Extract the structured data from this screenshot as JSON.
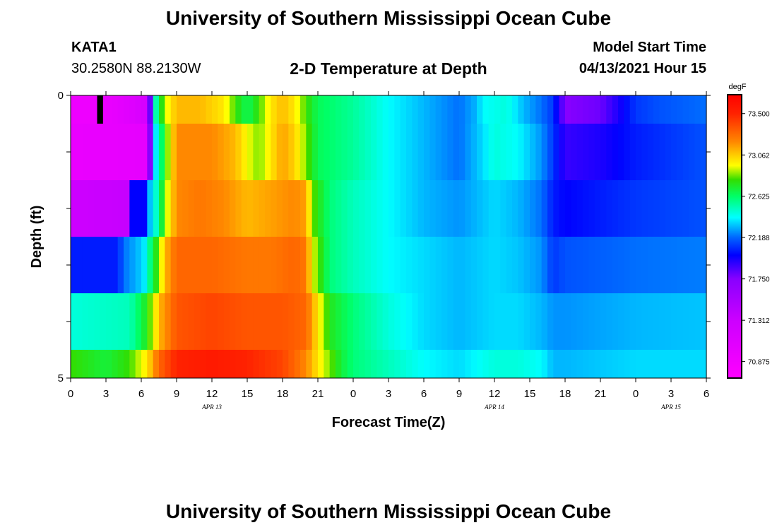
{
  "page": {
    "title_top": "University of Southern Mississippi Ocean Cube",
    "title_bottom": "University of Southern Mississippi Ocean Cube",
    "station_id": "KATA1",
    "station_coords": "30.2580N  88.2130W",
    "chart_title": "2-D Temperature at Depth",
    "model_start_label": "Model Start Time",
    "model_start_value": "04/13/2021 Hour 15"
  },
  "chart_data": {
    "type": "heatmap",
    "title": "2-D Temperature at Depth",
    "xlabel": "Forecast Time(Z)",
    "ylabel": "Depth (ft)",
    "units": "degF",
    "x_start_hour": 0,
    "x_end_hour": 54,
    "x_ticks": [
      {
        "hour": 0,
        "label": "0"
      },
      {
        "hour": 3,
        "label": "3"
      },
      {
        "hour": 6,
        "label": "6"
      },
      {
        "hour": 9,
        "label": "9"
      },
      {
        "hour": 12,
        "label": "12"
      },
      {
        "hour": 15,
        "label": "15"
      },
      {
        "hour": 18,
        "label": "18"
      },
      {
        "hour": 21,
        "label": "21"
      },
      {
        "hour": 24,
        "label": "0"
      },
      {
        "hour": 27,
        "label": "3"
      },
      {
        "hour": 30,
        "label": "6"
      },
      {
        "hour": 33,
        "label": "9"
      },
      {
        "hour": 36,
        "label": "12"
      },
      {
        "hour": 39,
        "label": "15"
      },
      {
        "hour": 42,
        "label": "18"
      },
      {
        "hour": 45,
        "label": "21"
      },
      {
        "hour": 48,
        "label": "0"
      },
      {
        "hour": 51,
        "label": "3"
      },
      {
        "hour": 54,
        "label": "6"
      }
    ],
    "date_labels": [
      {
        "hour": 12,
        "label": "APR 13"
      },
      {
        "hour": 36,
        "label": "APR 14"
      },
      {
        "hour": 51,
        "label": "APR 15"
      }
    ],
    "y_range": [
      0,
      5
    ],
    "y_tick_labels": [
      {
        "depth": 0,
        "label": "0"
      },
      {
        "depth": 5,
        "label": "5"
      }
    ],
    "y_minor_ticks": [
      1,
      2,
      3,
      4
    ],
    "rows": [
      {
        "depth_top": 0.0,
        "depth_bottom": 0.5,
        "knots": [
          [
            0,
            70.9
          ],
          [
            2,
            70.9
          ],
          [
            4,
            71.0
          ],
          [
            6.5,
            71.2
          ],
          [
            7,
            72.4
          ],
          [
            8,
            72.9
          ],
          [
            9,
            73.1
          ],
          [
            11,
            73.1
          ],
          [
            13,
            73.0
          ],
          [
            14,
            72.8
          ],
          [
            15,
            72.65
          ],
          [
            16,
            72.8
          ],
          [
            17,
            73.0
          ],
          [
            18,
            73.1
          ],
          [
            19,
            73.0
          ],
          [
            20,
            72.8
          ],
          [
            21,
            72.65
          ],
          [
            24,
            72.55
          ],
          [
            27,
            72.4
          ],
          [
            30,
            72.3
          ],
          [
            33,
            72.2
          ],
          [
            34.5,
            72.3
          ],
          [
            35,
            72.4
          ],
          [
            37,
            72.45
          ],
          [
            38.5,
            72.3
          ],
          [
            40,
            72.2
          ],
          [
            41,
            72.1
          ],
          [
            42,
            71.75
          ],
          [
            45,
            71.8
          ],
          [
            47,
            72.0
          ],
          [
            48,
            72.1
          ],
          [
            50,
            72.15
          ],
          [
            54,
            72.2
          ]
        ],
        "marker": {
          "hour": 2.5,
          "width_hours": 0.5,
          "color": "#000000"
        }
      },
      {
        "depth_top": 0.5,
        "depth_bottom": 1.5,
        "knots": [
          [
            0,
            70.95
          ],
          [
            6.5,
            71.0
          ],
          [
            6.9,
            72.2
          ],
          [
            7.5,
            72.5
          ],
          [
            8.3,
            72.9
          ],
          [
            9,
            73.2
          ],
          [
            12,
            73.2
          ],
          [
            14,
            73.1
          ],
          [
            15,
            72.95
          ],
          [
            16,
            72.85
          ],
          [
            17,
            73.0
          ],
          [
            18,
            73.15
          ],
          [
            19,
            73.05
          ],
          [
            20,
            72.85
          ],
          [
            21,
            72.65
          ],
          [
            24,
            72.55
          ],
          [
            27,
            72.4
          ],
          [
            30,
            72.3
          ],
          [
            33,
            72.2
          ],
          [
            35,
            72.35
          ],
          [
            36,
            72.45
          ],
          [
            38,
            72.4
          ],
          [
            40,
            72.25
          ],
          [
            41,
            72.1
          ],
          [
            42,
            71.9
          ],
          [
            45,
            71.95
          ],
          [
            48,
            72.05
          ],
          [
            51,
            72.1
          ],
          [
            54,
            72.15
          ]
        ]
      },
      {
        "depth_top": 1.5,
        "depth_bottom": 2.5,
        "knots": [
          [
            0,
            71.3
          ],
          [
            4.8,
            71.35
          ],
          [
            5.2,
            72.0
          ],
          [
            6.4,
            72.0
          ],
          [
            6.7,
            72.3
          ],
          [
            7.5,
            72.55
          ],
          [
            8,
            72.85
          ],
          [
            9,
            73.2
          ],
          [
            11,
            73.25
          ],
          [
            13,
            73.2
          ],
          [
            15,
            73.1
          ],
          [
            17,
            73.15
          ],
          [
            19,
            73.2
          ],
          [
            20,
            73.15
          ],
          [
            20.5,
            72.85
          ],
          [
            22,
            72.6
          ],
          [
            24,
            72.5
          ],
          [
            27,
            72.4
          ],
          [
            30,
            72.3
          ],
          [
            33,
            72.25
          ],
          [
            36,
            72.35
          ],
          [
            38,
            72.3
          ],
          [
            40,
            72.2
          ],
          [
            41,
            72.05
          ],
          [
            42,
            72.0
          ],
          [
            48,
            72.1
          ],
          [
            54,
            72.15
          ]
        ]
      },
      {
        "depth_top": 2.5,
        "depth_bottom": 3.5,
        "knots": [
          [
            0,
            72.05
          ],
          [
            4,
            72.05
          ],
          [
            4.5,
            72.2
          ],
          [
            6.2,
            72.35
          ],
          [
            6.8,
            72.6
          ],
          [
            7.5,
            72.85
          ],
          [
            8,
            73.1
          ],
          [
            9,
            73.3
          ],
          [
            12,
            73.3
          ],
          [
            15,
            73.25
          ],
          [
            17,
            73.25
          ],
          [
            19,
            73.3
          ],
          [
            20,
            73.25
          ],
          [
            20.5,
            72.95
          ],
          [
            22,
            72.6
          ],
          [
            24,
            72.5
          ],
          [
            27,
            72.4
          ],
          [
            30,
            72.35
          ],
          [
            33,
            72.3
          ],
          [
            36,
            72.35
          ],
          [
            38,
            72.32
          ],
          [
            40,
            72.25
          ],
          [
            41,
            72.1
          ],
          [
            42,
            72.15
          ],
          [
            48,
            72.2
          ],
          [
            54,
            72.22
          ]
        ]
      },
      {
        "depth_top": 3.5,
        "depth_bottom": 4.5,
        "knots": [
          [
            0,
            72.45
          ],
          [
            5,
            72.5
          ],
          [
            6.2,
            72.7
          ],
          [
            7,
            72.9
          ],
          [
            7.5,
            73.1
          ],
          [
            9,
            73.35
          ],
          [
            12,
            73.4
          ],
          [
            15,
            73.35
          ],
          [
            18,
            73.35
          ],
          [
            20,
            73.3
          ],
          [
            21,
            73.0
          ],
          [
            22,
            72.75
          ],
          [
            24,
            72.6
          ],
          [
            27,
            72.45
          ],
          [
            30,
            72.35
          ],
          [
            33,
            72.3
          ],
          [
            36,
            72.35
          ],
          [
            38,
            72.35
          ],
          [
            40,
            72.3
          ],
          [
            41,
            72.25
          ],
          [
            42,
            72.25
          ],
          [
            48,
            72.3
          ],
          [
            54,
            72.32
          ]
        ]
      },
      {
        "depth_top": 4.5,
        "depth_bottom": 5.0,
        "knots": [
          [
            0,
            72.8
          ],
          [
            3,
            72.7
          ],
          [
            5,
            72.8
          ],
          [
            6.5,
            73.0
          ],
          [
            7.5,
            73.3
          ],
          [
            9,
            73.5
          ],
          [
            12,
            73.55
          ],
          [
            15,
            73.5
          ],
          [
            18,
            73.4
          ],
          [
            20,
            73.2
          ],
          [
            21,
            73.0
          ],
          [
            22,
            72.85
          ],
          [
            23,
            72.7
          ],
          [
            24,
            72.6
          ],
          [
            27,
            72.5
          ],
          [
            30,
            72.4
          ],
          [
            33,
            72.35
          ],
          [
            36,
            72.45
          ],
          [
            38,
            72.45
          ],
          [
            40,
            72.4
          ],
          [
            41,
            72.3
          ],
          [
            42,
            72.3
          ],
          [
            48,
            72.35
          ],
          [
            54,
            72.35
          ]
        ]
      }
    ],
    "colorbar": {
      "label": "degF",
      "min": 70.7,
      "max": 73.7,
      "ticks": [
        "73.500",
        "73.062",
        "72.625",
        "72.188",
        "71.750",
        "71.312",
        "70.875"
      ],
      "stops": [
        {
          "v": 70.7,
          "color": "#ff00ff"
        },
        {
          "v": 71.312,
          "color": "#cc00ff"
        },
        {
          "v": 71.75,
          "color": "#8800ff"
        },
        {
          "v": 72.0,
          "color": "#0000ff"
        },
        {
          "v": 72.188,
          "color": "#0066ff"
        },
        {
          "v": 72.4,
          "color": "#00ffff"
        },
        {
          "v": 72.625,
          "color": "#00ff66"
        },
        {
          "v": 72.8,
          "color": "#33dd00"
        },
        {
          "v": 72.95,
          "color": "#ffff00"
        },
        {
          "v": 73.062,
          "color": "#ffcc00"
        },
        {
          "v": 73.2,
          "color": "#ff8800"
        },
        {
          "v": 73.5,
          "color": "#ff2200"
        },
        {
          "v": 73.7,
          "color": "#ff0000"
        }
      ]
    }
  }
}
